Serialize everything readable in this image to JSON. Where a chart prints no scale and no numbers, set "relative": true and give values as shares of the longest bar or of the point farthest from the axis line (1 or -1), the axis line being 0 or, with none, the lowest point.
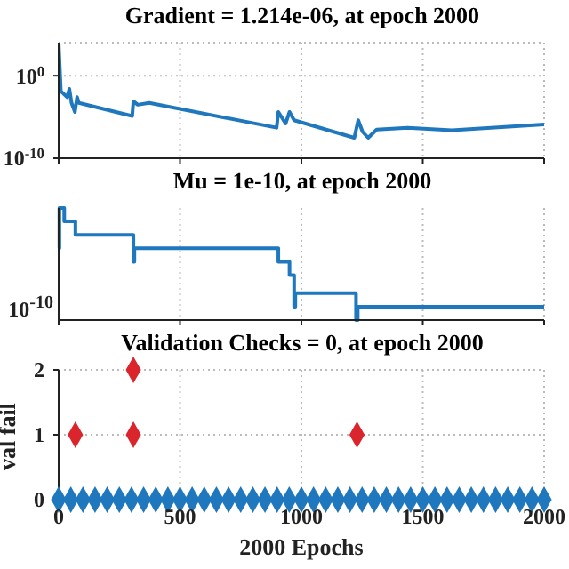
{
  "chart_data": [
    {
      "type": "line",
      "title": "Gradient = 1.214e-06, at epoch 2000",
      "log": true,
      "grid": true,
      "tick_labels": "y",
      "xlim": [
        0,
        2000
      ],
      "xticks": [
        {
          "value": 0,
          "label": null
        },
        {
          "value": 500,
          "label": null
        },
        {
          "value": 1000,
          "label": null
        },
        {
          "value": 1500,
          "label": null
        },
        {
          "value": 2000,
          "label": null
        }
      ],
      "ylim": [
        1e-10,
        10000
      ],
      "yticks": [
        {
          "value": 1e-10,
          "label": "10$^{-10}$"
        },
        {
          "value": 1,
          "label": "10$^{0}$"
        }
      ],
      "series": [
        {
          "color": "#1f77bd",
          "x": [
            0,
            9,
            35,
            44,
            53,
            67,
            76,
            83,
            303,
            308,
            326,
            373,
            898,
            905,
            935,
            951,
            970,
            1218,
            1234,
            1252,
            1275,
            1310,
            1437,
            1620,
            2000
          ],
          "values": [
            10000,
            0.013,
            0.0025,
            0.025,
            0.0005,
            4e-05,
            0.0025,
            0.0005,
            1.3e-05,
            0.0008,
            0.0003,
            0.0005,
            5e-07,
            4e-05,
            1.6e-06,
            4e-05,
            4e-06,
            3e-08,
            4e-06,
            1.6e-07,
            3e-08,
            3e-07,
            5e-07,
            2.5e-07,
            1.214e-06
          ]
        }
      ]
    },
    {
      "type": "step",
      "title": "Mu = 1e-10, at epoch 2000",
      "relative": true,
      "grid": "x",
      "tick_labels": false,
      "xlim": [
        0,
        2000
      ],
      "xticks": [
        {
          "value": 0,
          "label": null
        },
        {
          "value": 500,
          "label": null
        },
        {
          "value": 1000,
          "label": null
        },
        {
          "value": 1500,
          "label": null
        },
        {
          "value": 2000,
          "label": null
        }
      ],
      "annotations": [
        "10$^{-10}$"
      ],
      "series": [
        {
          "color": "#1f77bd",
          "x": [
            0,
            3,
            23,
            69,
            308,
            312,
            320,
            905,
            951,
            970,
            975,
            1225,
            1232,
            2000
          ],
          "values": [
            0.64,
            1,
            0.88,
            0.76,
            0.52,
            0.64,
            0.64,
            0.52,
            0.4,
            0.12,
            0.24,
            0,
            0.12,
            0.12
          ]
        }
      ]
    },
    {
      "type": "scatter",
      "title": "Validation Checks = 0, at epoch 2000",
      "xlabel": "2000 Epochs",
      "ylabel": "val fail",
      "grid": true,
      "marker": "diamond",
      "xlim": [
        0,
        2000
      ],
      "xticks": [
        0,
        500,
        1000,
        1500,
        2000
      ],
      "ylim": [
        0,
        2
      ],
      "yticks": [
        0,
        1,
        2
      ],
      "series": [
        {
          "color": "#1f77bd",
          "x": [
            0,
            50,
            100,
            150,
            200,
            250,
            300,
            350,
            400,
            450,
            500,
            550,
            600,
            650,
            700,
            750,
            800,
            850,
            900,
            950,
            1000,
            1050,
            1100,
            1150,
            1200,
            1250,
            1300,
            1350,
            1400,
            1450,
            1500,
            1550,
            1600,
            1650,
            1700,
            1750,
            1800,
            1850,
            1900,
            1950,
            2000
          ],
          "values": [
            0,
            0,
            0,
            0,
            0,
            0,
            0,
            0,
            0,
            0,
            0,
            0,
            0,
            0,
            0,
            0,
            0,
            0,
            0,
            0,
            0,
            0,
            0,
            0,
            0,
            0,
            0,
            0,
            0,
            0,
            0,
            0,
            0,
            0,
            0,
            0,
            0,
            0,
            0,
            0,
            0
          ]
        },
        {
          "color": "#d9252b",
          "x": [
            69,
            308,
            308,
            1229
          ],
          "values": [
            1,
            1,
            2,
            1
          ]
        }
      ]
    }
  ]
}
